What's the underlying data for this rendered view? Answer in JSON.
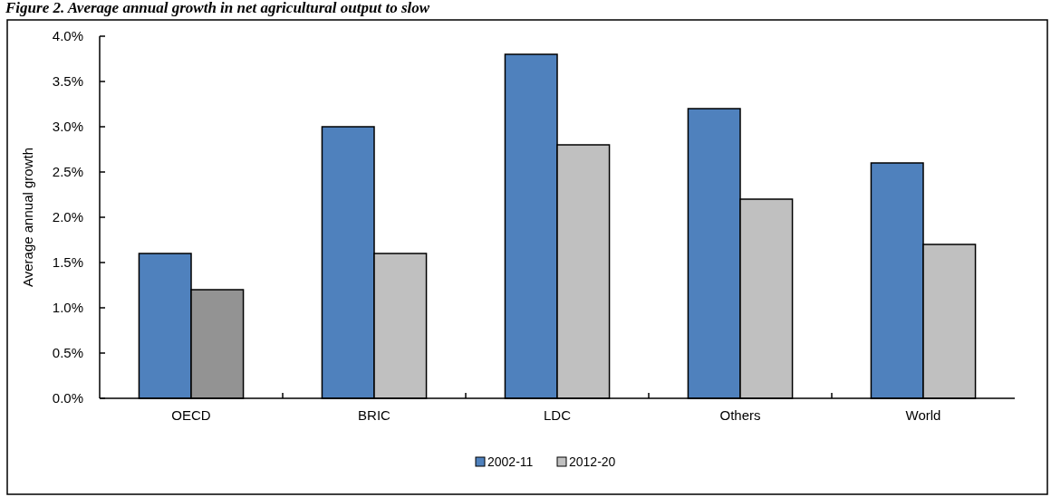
{
  "chart_data": {
    "type": "bar",
    "title": "Figure 2. Average annual growth in net agricultural output to slow",
    "ylabel": "Average annual growth",
    "categories": [
      "OECD",
      "BRIC",
      "LDC",
      "Others",
      "World"
    ],
    "series": [
      {
        "name": "2002-11",
        "color": "#4f81bd",
        "values": [
          1.6,
          3.0,
          3.8,
          3.2,
          2.6
        ]
      },
      {
        "name": "2012-20",
        "color": "#c0c0c0",
        "colors": [
          "#939393",
          "#c0c0c0",
          "#c0c0c0",
          "#c0c0c0",
          "#c0c0c0"
        ],
        "values": [
          1.2,
          1.6,
          2.8,
          2.2,
          1.7
        ]
      }
    ],
    "ylim": [
      0,
      4
    ],
    "yticks": [
      {
        "value": 0,
        "label": "0.0%"
      },
      {
        "value": 0.5,
        "label": "0.5%"
      },
      {
        "value": 1,
        "label": "1.0%"
      },
      {
        "value": 1.5,
        "label": "1.5%"
      },
      {
        "value": 2,
        "label": "2.0%"
      },
      {
        "value": 2.5,
        "label": "2.5%"
      },
      {
        "value": 3,
        "label": "3.0%"
      },
      {
        "value": 3.5,
        "label": "3.5%"
      },
      {
        "value": 4,
        "label": "4.0%"
      }
    ],
    "grid": false,
    "legend": "bottom"
  }
}
